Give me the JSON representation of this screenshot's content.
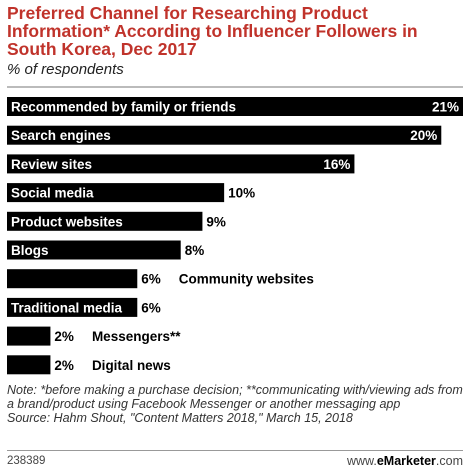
{
  "header": {
    "title": "Preferred Channel for Researching Product Information* According to Influencer Followers in South Korea, Dec 2017",
    "subtitle": "% of respondents"
  },
  "chart_data": {
    "type": "bar",
    "orientation": "horizontal",
    "title": "Preferred Channel for Researching Product Information* According to Influencer Followers in South Korea, Dec 2017",
    "ylabel": "% of respondents",
    "categories": [
      "Recommended by family or friends",
      "Search engines",
      "Review sites",
      "Social media",
      "Product websites",
      "Blogs",
      "Community websites",
      "Traditional media",
      "Messengers**",
      "Digital news"
    ],
    "values": [
      21,
      20,
      16,
      10,
      9,
      8,
      6,
      6,
      2,
      2
    ],
    "value_labels": [
      "21%",
      "20%",
      "16%",
      "10%",
      "9%",
      "8%",
      "6%",
      "6%",
      "2%",
      "2%"
    ],
    "xlim": [
      0,
      21
    ],
    "grid": false,
    "bar_color": "#000000"
  },
  "footer": {
    "note": "Note: *before making a purchase decision; **communicating with/viewing ads from a brand/product using Facebook Messenger or another messaging app",
    "source": "Source: Hahm Shout, \"Content Matters 2018,\" March 15, 2018",
    "chart_id": "238389",
    "brand_prefix": "www.",
    "brand_name": "eMarketer",
    "brand_suffix": ".com"
  }
}
